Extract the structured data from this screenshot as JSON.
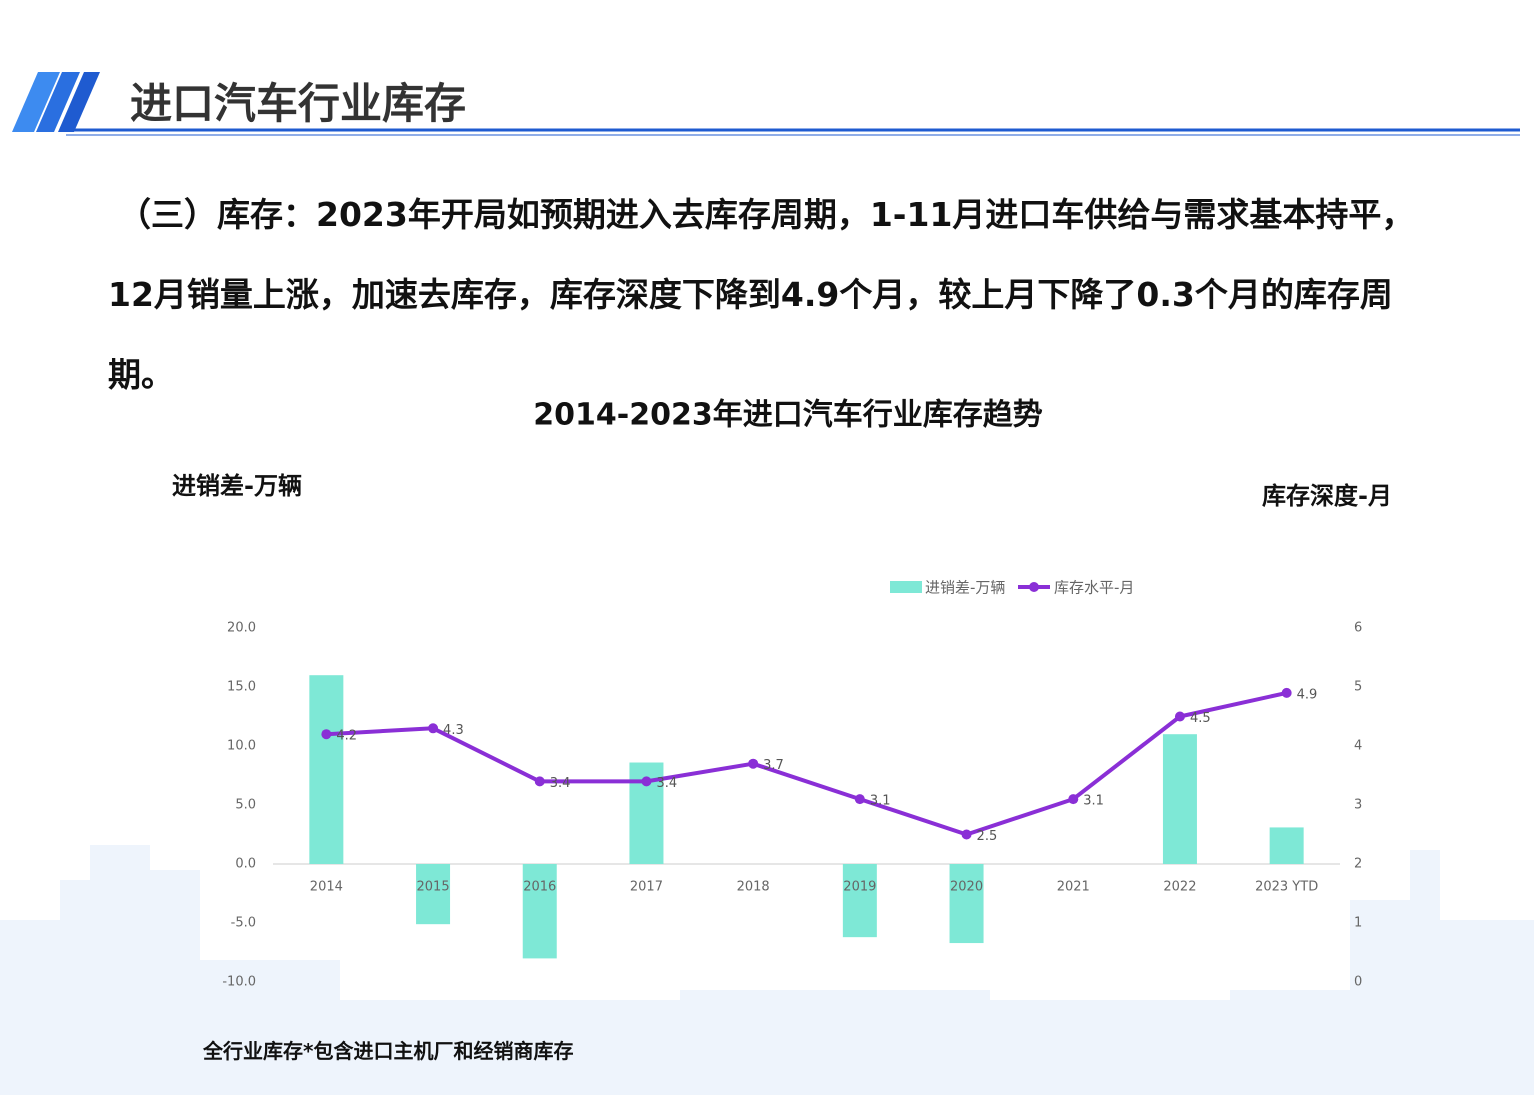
{
  "header": {
    "title": "进口汽车行业库存"
  },
  "summary": "（三）库存：2023年开局如预期进入去库存周期，1-11月进口车供给与需求基本持平，12月销量上涨，加速去库存，库存深度下降到4.9个月，较上月下降了0.3个月的库存周期。",
  "footnote": "全行业库存*包含进口主机厂和经销商库存",
  "chart_data": {
    "type": "bar-line",
    "title": "2014-2023年进口汽车行业库存趋势",
    "y_label": "进销差-万辆",
    "y2_label": "库存深度-月",
    "categories": [
      "2014",
      "2015",
      "2016",
      "2017",
      "2018",
      "2019",
      "2020",
      "2021",
      "2022",
      "2023 YTD"
    ],
    "series": [
      {
        "name": "进销差-万辆",
        "type": "bar",
        "color": "#7ee8d6",
        "values": [
          16.0,
          -5.1,
          -8.0,
          8.6,
          null,
          -6.2,
          -6.7,
          null,
          11.0,
          3.1
        ]
      },
      {
        "name": "库存水平-月",
        "type": "line",
        "axis": "y2",
        "color": "#8a2fd6",
        "values": [
          4.2,
          4.3,
          3.4,
          3.4,
          3.7,
          3.1,
          2.5,
          3.1,
          4.5,
          4.9
        ]
      }
    ],
    "ylim": [
      -10,
      20
    ],
    "yticks": [
      {
        "value": 20,
        "label": "20.0"
      },
      {
        "value": 15,
        "label": "15.0"
      },
      {
        "value": 10,
        "label": "10.0"
      },
      {
        "value": 5,
        "label": "5.0"
      },
      {
        "value": 0,
        "label": "0.0"
      },
      {
        "value": -5,
        "label": "-5.0"
      },
      {
        "value": -10,
        "label": "-10.0"
      }
    ],
    "y2lim": [
      0,
      6
    ],
    "y2ticks": [
      0,
      1,
      2,
      3,
      4,
      5,
      6
    ],
    "legend": "top"
  }
}
